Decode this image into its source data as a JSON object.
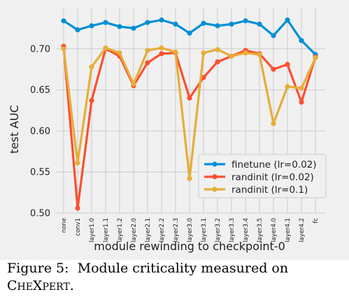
{
  "chart_data": {
    "type": "line",
    "xlabel": "module rewinding to checkpoint-0",
    "ylabel": "test AUC",
    "ylim": [
      0.5,
      0.75
    ],
    "yticks": [
      "0.50",
      "0.55",
      "0.60",
      "0.65",
      "0.70"
    ],
    "yticks_values": [
      0.5,
      0.55,
      0.6,
      0.65,
      0.7
    ],
    "grid": true,
    "legend_position": "lower-right",
    "categories": [
      "none",
      "conv1",
      "layer1.0",
      "layer1.1",
      "layer1.2",
      "layer2.0",
      "layer2.1",
      "layer2.2",
      "layer2.3",
      "layer3.0",
      "layer3.1",
      "layer3.2",
      "layer3.3",
      "layer3.4",
      "layer3.5",
      "layer4.0",
      "layer4.1",
      "layer4.2",
      "fc"
    ],
    "series": [
      {
        "name": "finetune (lr=0.02)",
        "color": "#008fd5",
        "values": [
          0.734,
          0.723,
          0.728,
          0.732,
          0.727,
          0.725,
          0.732,
          0.735,
          0.73,
          0.719,
          0.731,
          0.728,
          0.73,
          0.734,
          0.73,
          0.716,
          0.735,
          0.71,
          0.693
        ]
      },
      {
        "name": "randinit (lr=0.02)",
        "color": "#fc4f30",
        "values": [
          0.703,
          0.506,
          0.637,
          0.7,
          0.691,
          0.655,
          0.683,
          0.694,
          0.695,
          0.64,
          0.665,
          0.684,
          0.691,
          0.698,
          0.694,
          0.675,
          0.681,
          0.635,
          0.69
        ]
      },
      {
        "name": "randinit (lr=0.1)",
        "color": "#e5ae38",
        "values": [
          0.7,
          0.561,
          0.678,
          0.701,
          0.695,
          0.657,
          0.698,
          0.701,
          0.696,
          0.542,
          0.695,
          0.699,
          0.691,
          0.695,
          0.693,
          0.609,
          0.654,
          0.652,
          0.689
        ]
      }
    ]
  },
  "caption": {
    "prefix": "Figure 5:",
    "text": "Module criticality measured on",
    "dataset_initial_c": "C",
    "dataset_small_he": "HE",
    "dataset_x": "X",
    "dataset_small_pert": "PERT",
    "period": "."
  }
}
